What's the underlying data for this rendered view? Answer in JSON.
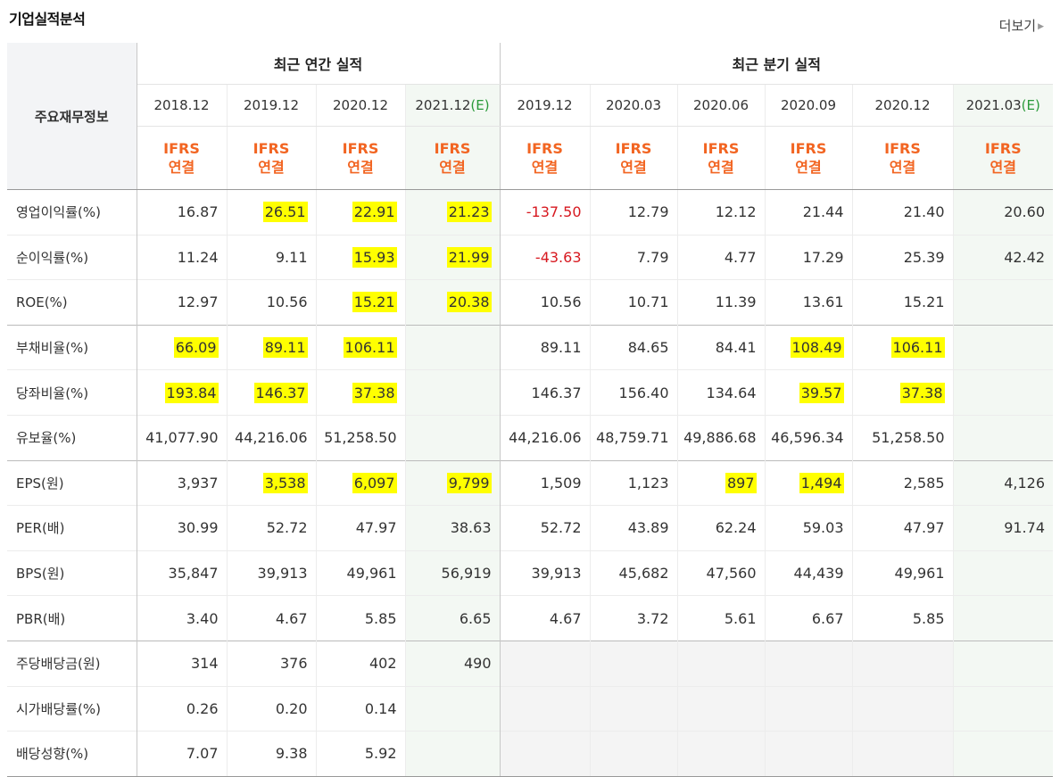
{
  "header": {
    "title": "기업실적분석",
    "more_label": "더보기"
  },
  "table": {
    "row_header_label": "주요재무정보",
    "annual_label": "최근 연간 실적",
    "quarter_label": "최근 분기 실적",
    "ifrs_top": "IFRS",
    "ifrs_bottom": "연결",
    "estimate_mark": "(E)",
    "annual_dates": [
      "2018.12",
      "2019.12",
      "2020.12",
      "2021.12"
    ],
    "quarter_dates": [
      "2019.12",
      "2020.03",
      "2020.06",
      "2020.09",
      "2020.12",
      "2021.03"
    ],
    "forecast_flags": {
      "annual": [
        false,
        false,
        false,
        true
      ],
      "quarter": [
        false,
        false,
        false,
        false,
        false,
        true
      ]
    },
    "rows": [
      {
        "label": "영업이익률(%)",
        "values": [
          "16.87",
          "26.51",
          "22.91",
          "21.23",
          "-137.50",
          "12.79",
          "12.12",
          "21.44",
          "21.40",
          "20.60"
        ]
      },
      {
        "label": "순이익률(%)",
        "values": [
          "11.24",
          "9.11",
          "15.93",
          "21.99",
          "-43.63",
          "7.79",
          "4.77",
          "17.29",
          "25.39",
          "42.42"
        ]
      },
      {
        "label": "ROE(%)",
        "values": [
          "12.97",
          "10.56",
          "15.21",
          "20.38",
          "10.56",
          "10.71",
          "11.39",
          "13.61",
          "15.21",
          ""
        ]
      },
      {
        "label": "부채비율(%)",
        "values": [
          "66.09",
          "89.11",
          "106.11",
          "",
          "89.11",
          "84.65",
          "84.41",
          "108.49",
          "106.11",
          ""
        ]
      },
      {
        "label": "당좌비율(%)",
        "values": [
          "193.84",
          "146.37",
          "37.38",
          "",
          "146.37",
          "156.40",
          "134.64",
          "39.57",
          "37.38",
          ""
        ]
      },
      {
        "label": "유보율(%)",
        "values": [
          "41,077.90",
          "44,216.06",
          "51,258.50",
          "",
          "44,216.06",
          "48,759.71",
          "49,886.68",
          "46,596.34",
          "51,258.50",
          ""
        ]
      },
      {
        "label": "EPS(원)",
        "values": [
          "3,937",
          "3,538",
          "6,097",
          "9,799",
          "1,509",
          "1,123",
          "897",
          "1,494",
          "2,585",
          "4,126"
        ]
      },
      {
        "label": "PER(배)",
        "values": [
          "30.99",
          "52.72",
          "47.97",
          "38.63",
          "52.72",
          "43.89",
          "62.24",
          "59.03",
          "47.97",
          "91.74"
        ]
      },
      {
        "label": "BPS(원)",
        "values": [
          "35,847",
          "39,913",
          "49,961",
          "56,919",
          "39,913",
          "45,682",
          "47,560",
          "44,439",
          "49,961",
          ""
        ]
      },
      {
        "label": "PBR(배)",
        "values": [
          "3.40",
          "4.67",
          "5.85",
          "6.65",
          "4.67",
          "3.72",
          "5.61",
          "6.67",
          "5.85",
          ""
        ]
      },
      {
        "label": "주당배당금(원)",
        "values": [
          "314",
          "376",
          "402",
          "490",
          "",
          "",
          "",
          "",
          "",
          ""
        ]
      },
      {
        "label": "시가배당률(%)",
        "values": [
          "0.26",
          "0.20",
          "0.14",
          "",
          "",
          "",
          "",
          "",
          "",
          ""
        ]
      },
      {
        "label": "배당성향(%)",
        "values": [
          "7.07",
          "9.38",
          "5.92",
          "",
          "",
          "",
          "",
          "",
          "",
          ""
        ]
      }
    ],
    "highlight_color": "#ffff00",
    "negative_color": "#d71920",
    "ifrs_color": "#f26522",
    "estimate_color": "#2a9a3a"
  }
}
